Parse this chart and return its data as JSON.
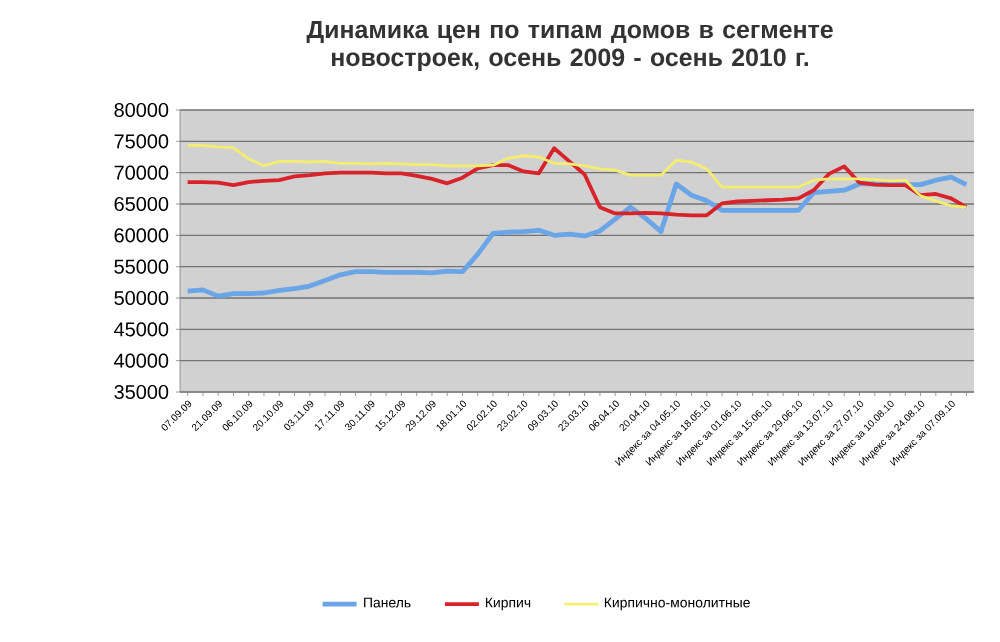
{
  "chart_data": {
    "type": "line",
    "title": "Динамика цен по типам домов в сегменте новостроек, осень 2009 - осень 2010 г.",
    "categories": [
      "07.09.09",
      null,
      "21.09.09",
      null,
      "06.10.09",
      null,
      "20.10.09",
      null,
      "03.11.09",
      null,
      "17.11.09",
      null,
      "30.11.09",
      null,
      "15.12.09",
      null,
      "29.12.09",
      null,
      "18.01.10",
      null,
      "02.02.10",
      null,
      "23.02.10",
      null,
      "09.03.10",
      null,
      "23.03.10",
      null,
      "06.04.10",
      null,
      "20.04.10",
      null,
      "Индекс за 04.05.10",
      null,
      "Индекс за 18.05.10",
      null,
      "Индекс за 01.06.10",
      null,
      "Индекс за 15.06.10",
      null,
      "Индекс за 29.06.10",
      null,
      "Индекс за 13.07.10",
      null,
      "Индекс за 27.07.10",
      null,
      "Индекс за 10.08.10",
      null,
      "Индекс за 24.08.10",
      null,
      "Индекс за 07.09.10",
      null
    ],
    "series": [
      {
        "name": "Панель",
        "color": "#6aa5e8",
        "values": [
          51100,
          51300,
          50300,
          50700,
          50700,
          50800,
          51200,
          51500,
          51900,
          52800,
          53700,
          54200,
          54200,
          54100,
          54100,
          54100,
          54000,
          54300,
          54200,
          57000,
          60300,
          60500,
          60600,
          60800,
          60000,
          60200,
          59900,
          60700,
          62600,
          64500,
          62700,
          60600,
          68200,
          66400,
          65500,
          64000,
          64000,
          64000,
          64000,
          64000,
          64000,
          66800,
          67000,
          67200,
          68200,
          68200,
          68100,
          68100,
          68100,
          68800,
          69300,
          68100
        ]
      },
      {
        "name": "Кирпич",
        "color": "#d9232a",
        "values": [
          68500,
          68500,
          68400,
          68000,
          68500,
          68700,
          68800,
          69400,
          69600,
          69900,
          70000,
          70000,
          70000,
          69900,
          69900,
          69500,
          69000,
          68300,
          69200,
          70700,
          71200,
          71200,
          70200,
          69900,
          73900,
          71800,
          69700,
          64500,
          63500,
          63500,
          63600,
          63500,
          63300,
          63200,
          63200,
          65100,
          65400,
          65500,
          65600,
          65700,
          65900,
          67200,
          69800,
          71000,
          68400,
          68100,
          68000,
          68000,
          66400,
          66600,
          65900,
          64500
        ]
      },
      {
        "name": "Кирпично-монолитные",
        "color": "#f5ed6e",
        "values": [
          74400,
          74300,
          74100,
          74000,
          72200,
          71100,
          71800,
          71800,
          71700,
          71800,
          71500,
          71500,
          71400,
          71500,
          71400,
          71300,
          71300,
          71100,
          71100,
          71100,
          71200,
          72300,
          72700,
          72500,
          71500,
          71400,
          71100,
          70600,
          70400,
          69600,
          69600,
          69600,
          72000,
          71700,
          70600,
          67700,
          67700,
          67700,
          67700,
          67700,
          67700,
          68800,
          69000,
          69000,
          69000,
          68900,
          68700,
          68800,
          66300,
          65500,
          64700,
          64500
        ]
      }
    ],
    "ylim": [
      35000,
      80000
    ],
    "yticks": [
      35000,
      40000,
      45000,
      50000,
      55000,
      60000,
      65000,
      70000,
      75000,
      80000
    ],
    "grid": "y",
    "legend": "bottom",
    "marker": "none",
    "line_style": "solid"
  }
}
